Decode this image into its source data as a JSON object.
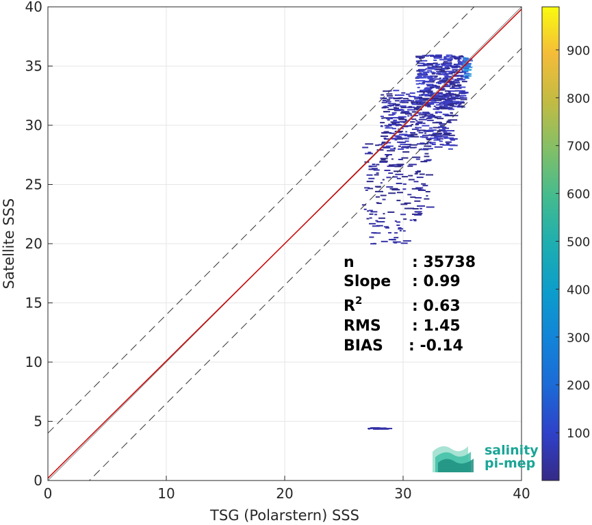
{
  "chart_data": {
    "type": "heatmap",
    "title": "",
    "xlabel": "TSG (Polarstern) SSS",
    "ylabel": "Satellite SSS",
    "xlim": [
      0,
      40
    ],
    "ylim": [
      0,
      40
    ],
    "xticks": [
      0,
      10,
      20,
      30,
      40
    ],
    "yticks": [
      0,
      5,
      10,
      15,
      20,
      25,
      30,
      35,
      40
    ],
    "grid": true,
    "colorbar": {
      "min": 0,
      "max": 990,
      "ticks": [
        100,
        200,
        300,
        400,
        500,
        600,
        700,
        800,
        900
      ],
      "colormap": "parula"
    },
    "reference_lines": {
      "one_to_one": {
        "slope": 1,
        "intercept": 0,
        "color": "#888888",
        "style": "solid"
      },
      "fit": {
        "slope": 0.99,
        "intercept": 0.2,
        "color": "#cc0000",
        "style": "solid"
      },
      "upper_bound": {
        "slope": 1,
        "intercept": 4,
        "color": "#333333",
        "style": "dashed"
      },
      "lower_bound": {
        "slope": 1,
        "intercept": -3.5,
        "color": "#333333",
        "style": "dashed"
      }
    },
    "density_clusters": [
      {
        "x": [
          31,
          35
        ],
        "y": [
          31.5,
          36
        ],
        "density": "high"
      },
      {
        "x": [
          28,
          34
        ],
        "y": [
          28,
          33
        ],
        "density": "medium"
      },
      {
        "x": [
          26.5,
          32
        ],
        "y": [
          22,
          28.5
        ],
        "density": "low"
      },
      {
        "x": [
          27,
          30
        ],
        "y": [
          20,
          22
        ],
        "density": "sparse"
      },
      {
        "x": [
          35,
          35.3
        ],
        "y": [
          34,
          35.8
        ],
        "density": "peak"
      },
      {
        "x": [
          27,
          28.5
        ],
        "y": [
          4.4,
          4.5
        ],
        "density": "sparse"
      }
    ],
    "stats": [
      {
        "label": "n",
        "value": ": 35738"
      },
      {
        "label": "Slope",
        "value": ": 0.99"
      },
      {
        "label": "R",
        "sup": "2",
        "value": ": 0.63"
      },
      {
        "label": "RMS",
        "value": ": 1.45"
      },
      {
        "label": "BIAS",
        "value": ": -0.14"
      }
    ]
  },
  "logo": {
    "line1": "salinity",
    "line2": "pi-mep",
    "color": "#1aa596"
  }
}
